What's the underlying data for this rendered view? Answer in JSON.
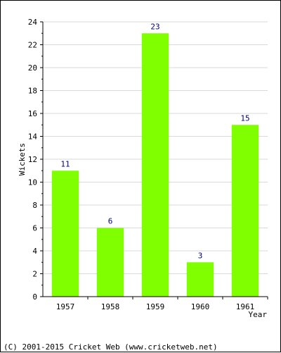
{
  "chart_data": {
    "type": "bar",
    "categories": [
      "1957",
      "1958",
      "1959",
      "1960",
      "1961"
    ],
    "values": [
      11,
      6,
      23,
      3,
      15
    ],
    "xlabel": "Year",
    "ylabel": "Wickets",
    "ylim": [
      0,
      24
    ],
    "yticks": [
      0,
      2,
      4,
      6,
      8,
      10,
      12,
      14,
      16,
      18,
      20,
      22,
      24
    ],
    "grid": true,
    "bar_color": "#7fff00",
    "label_color": "#000080"
  },
  "footer": {
    "copyright": "(C) 2001-2015 Cricket Web (www.cricketweb.net)"
  }
}
